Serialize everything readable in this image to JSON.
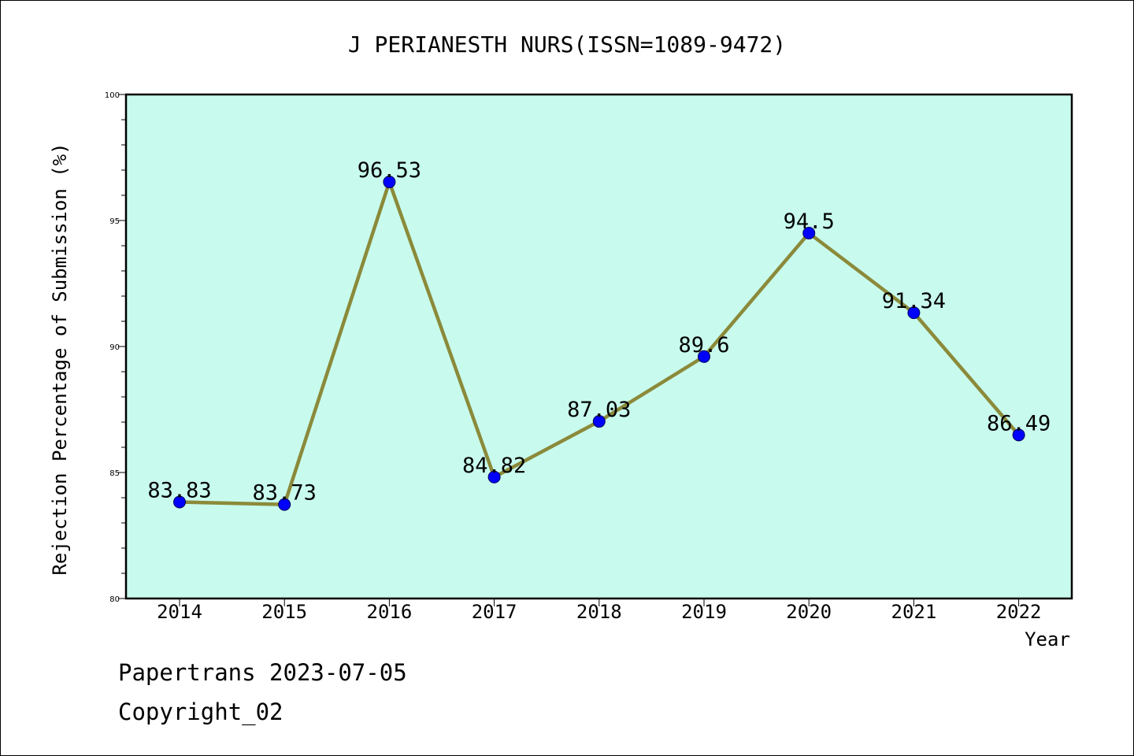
{
  "chart_data": {
    "type": "line",
    "title": "J PERIANESTH NURS(ISSN=1089-9472)",
    "xlabel": "Year",
    "ylabel": "Rejection Percentage of Submission (%)",
    "categories": [
      "2014",
      "2015",
      "2016",
      "2017",
      "2018",
      "2019",
      "2020",
      "2021",
      "2022"
    ],
    "values": [
      83.83,
      83.73,
      96.53,
      84.82,
      87.03,
      89.6,
      94.5,
      91.34,
      86.49
    ],
    "data_labels": [
      "83.83",
      "83.73",
      "96.53",
      "84.82",
      "87.03",
      "89.6",
      "94.5",
      "91.34",
      "86.49"
    ],
    "ylim": [
      80,
      100
    ],
    "y_ticks": [
      "80",
      "85",
      "90",
      "95",
      "100"
    ],
    "grid": false,
    "colors": {
      "plot_background": "#c8fbee",
      "line": "#8b8a3a",
      "marker": "#0000ff",
      "marker_edge": "#00005a"
    }
  },
  "footer": {
    "line1": "Papertrans 2023-07-05",
    "line2": "Copyright_02"
  }
}
